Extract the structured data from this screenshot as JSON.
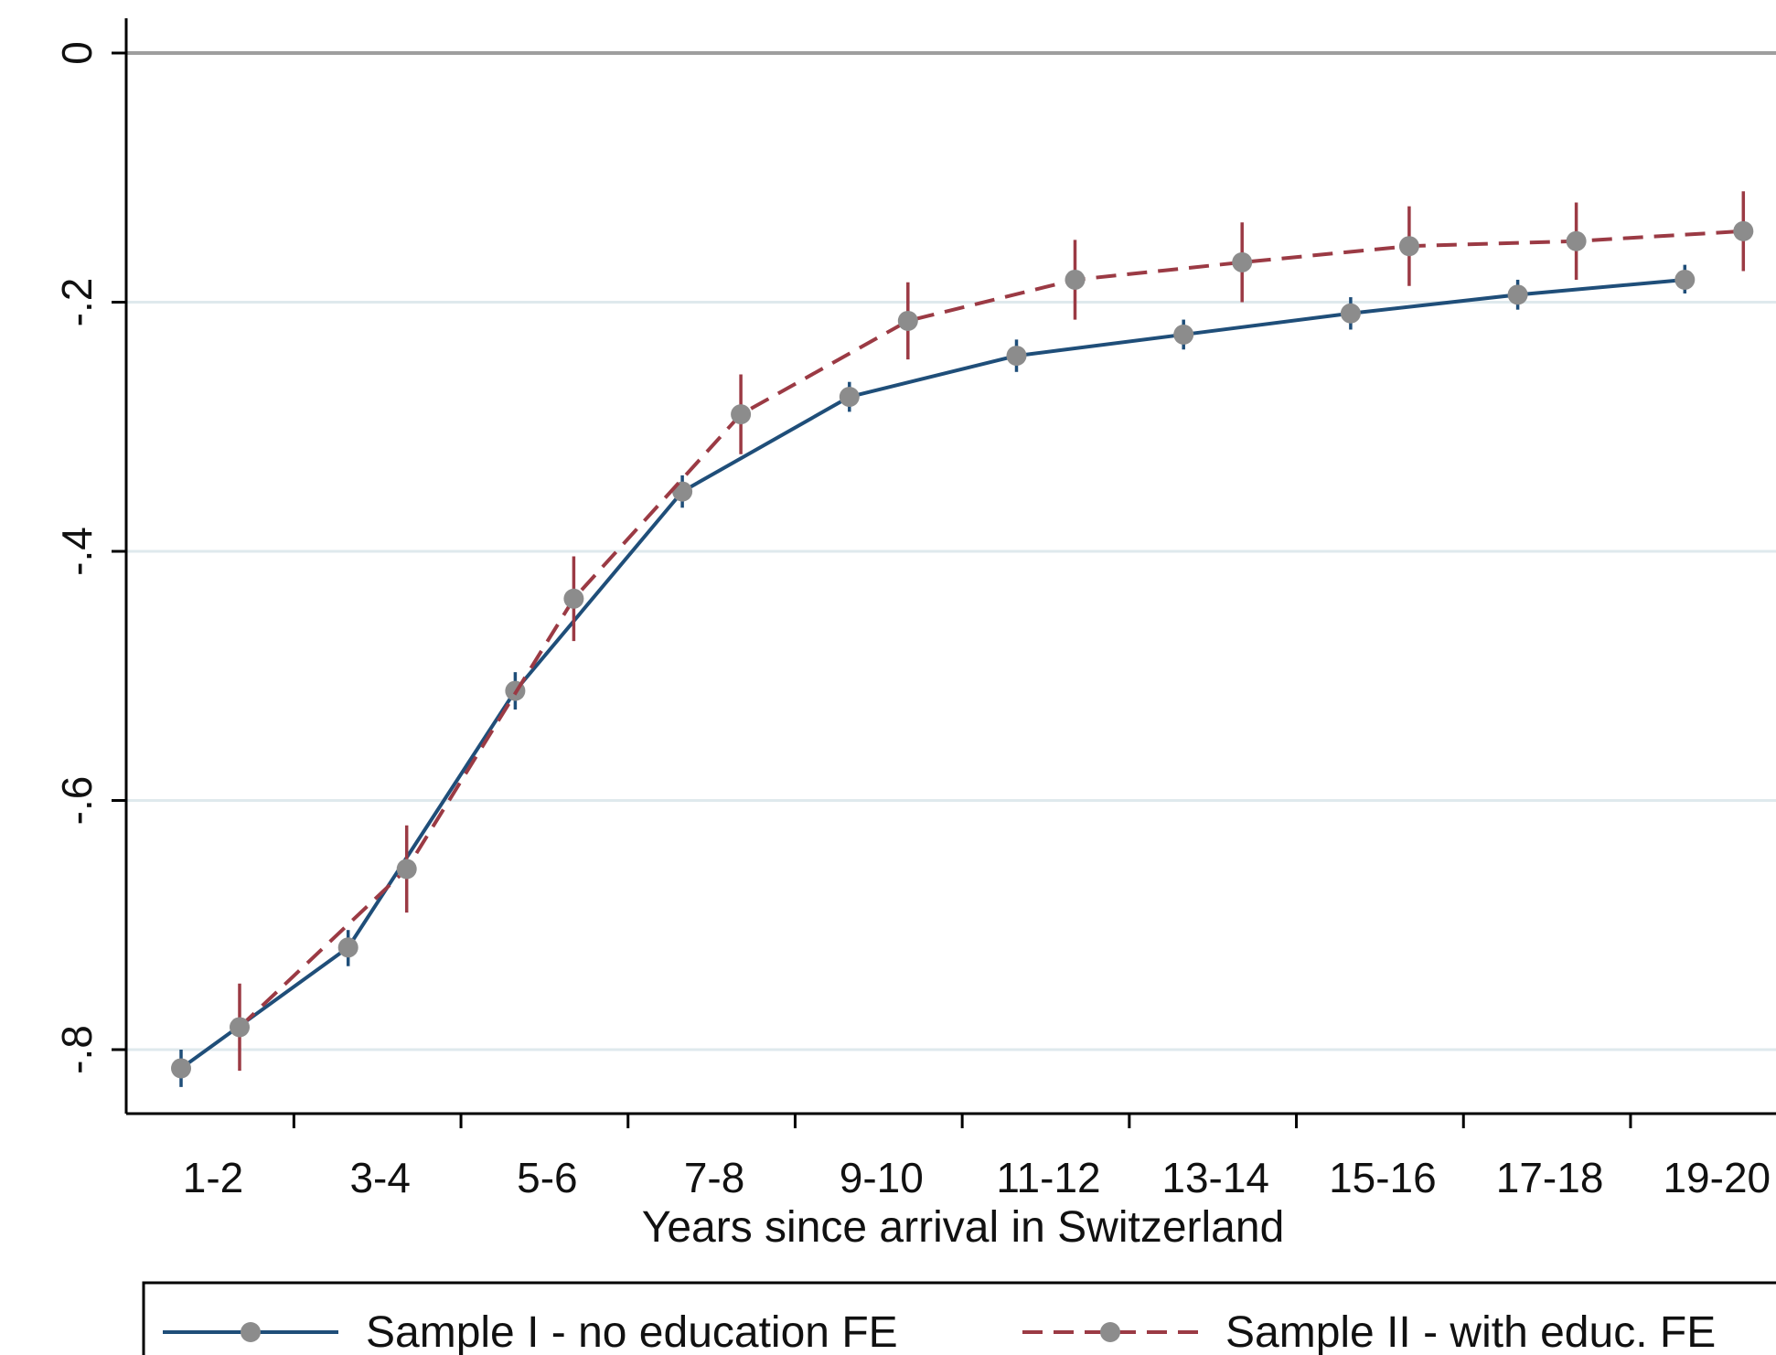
{
  "chart_data": {
    "type": "line",
    "xlabel": "Years since arrival in Switzerland",
    "ylabel": "",
    "categories": [
      "1-2",
      "3-4",
      "5-6",
      "7-8",
      "9-10",
      "11-12",
      "13-14",
      "15-16",
      "17-18",
      "19-20"
    ],
    "y_ticks": [
      0,
      -0.2,
      -0.4,
      -0.6,
      -0.8
    ],
    "y_tick_labels": [
      "0",
      "-.2",
      "-.4",
      "-.6",
      "-.8"
    ],
    "ylim": [
      -0.85,
      0.03
    ],
    "grid": true,
    "reference_line": 0,
    "legend_position": "bottom",
    "series": [
      {
        "name": "Sample I - no education FE",
        "style": "solid",
        "color": "#1f4e79",
        "values": [
          -0.815,
          -0.718,
          -0.512,
          -0.352,
          -0.276,
          -0.243,
          -0.226,
          -0.209,
          -0.194,
          -0.182
        ],
        "ci_low": [
          -0.83,
          -0.733,
          -0.527,
          -0.365,
          -0.288,
          -0.256,
          -0.238,
          -0.222,
          -0.206,
          -0.193
        ],
        "ci_high": [
          -0.8,
          -0.704,
          -0.497,
          -0.339,
          -0.264,
          -0.23,
          -0.214,
          -0.196,
          -0.182,
          -0.17
        ]
      },
      {
        "name": "Sample II - with educ. FE",
        "style": "dashed",
        "color": "#9b3a44",
        "values": [
          -0.782,
          -0.655,
          -0.438,
          -0.29,
          -0.215,
          -0.182,
          -0.168,
          -0.155,
          -0.151,
          -0.143
        ],
        "ci_low": [
          -0.817,
          -0.69,
          -0.472,
          -0.322,
          -0.246,
          -0.214,
          -0.2,
          -0.187,
          -0.182,
          -0.175
        ],
        "ci_high": [
          -0.747,
          -0.62,
          -0.404,
          -0.258,
          -0.184,
          -0.15,
          -0.136,
          -0.123,
          -0.12,
          -0.111
        ]
      }
    ]
  },
  "colors": {
    "marker": "#8c8c8c",
    "grid": "#dfe9ed",
    "axis": "#000000",
    "zero_line": "#9e9e9e"
  }
}
